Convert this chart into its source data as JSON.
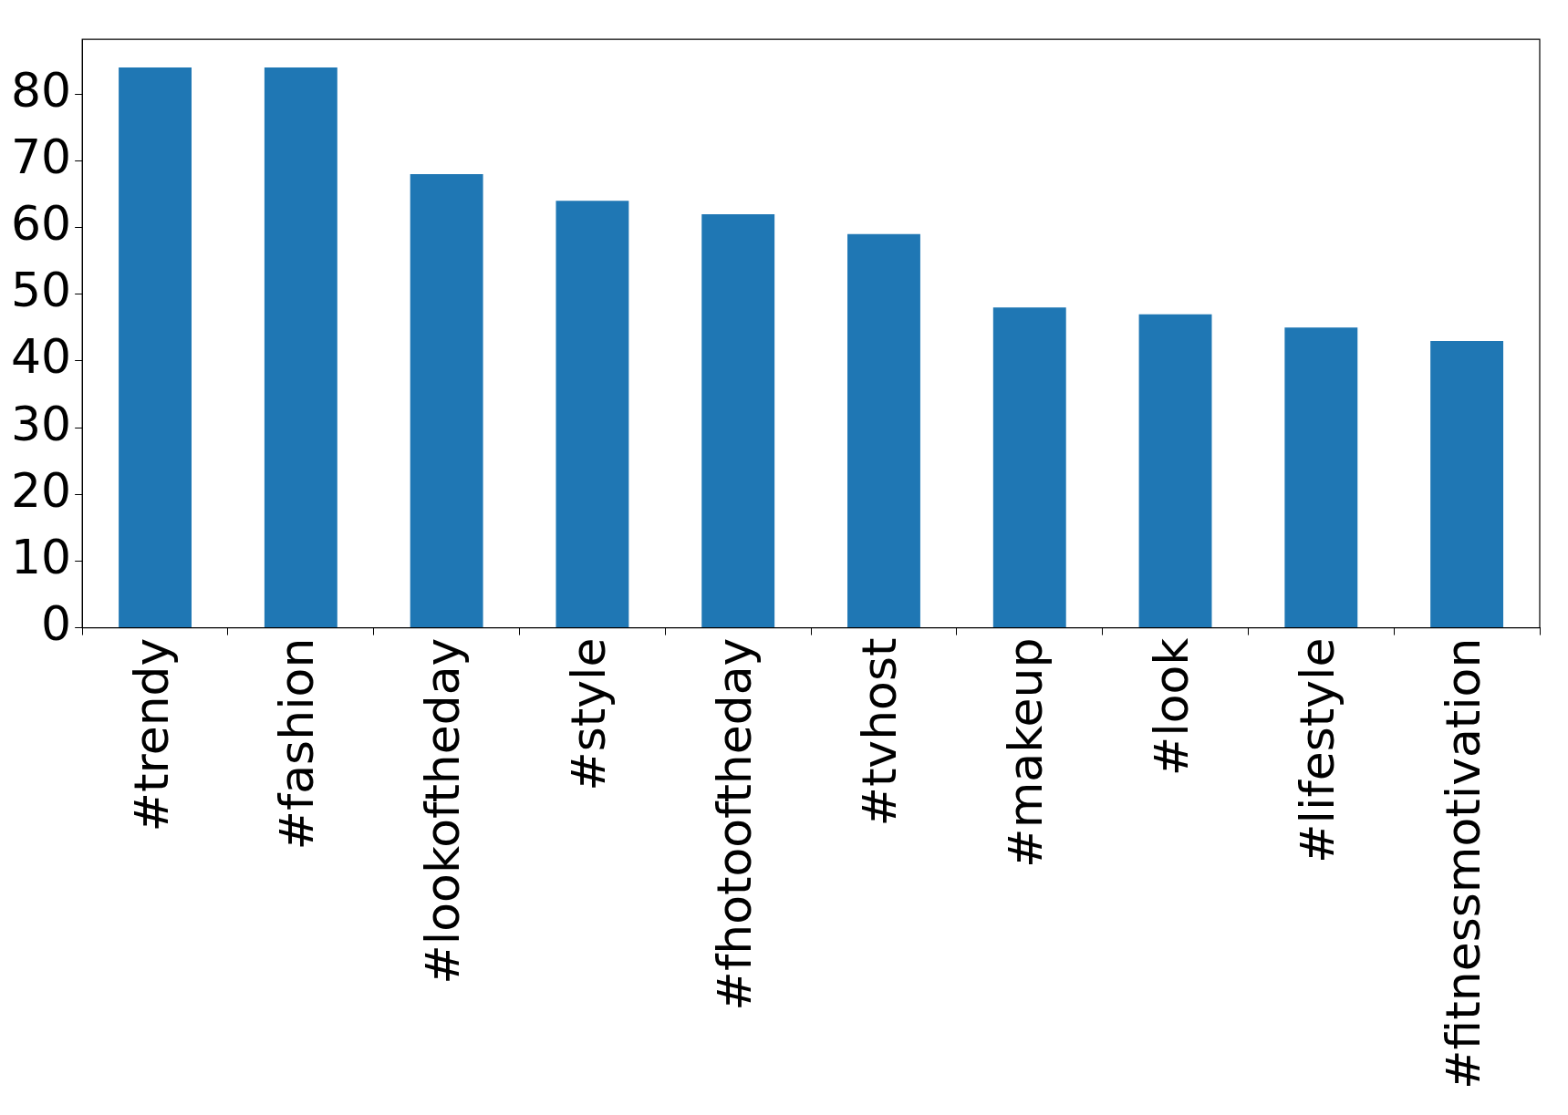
{
  "chart_data": {
    "type": "bar",
    "categories": [
      "#trendy",
      "#fashion",
      "#lookoftheday",
      "#style",
      "#fhotooftheday",
      "#tvhost",
      "#makeup",
      "#look",
      "#lifestyle",
      "#fitnessmotivation"
    ],
    "values": [
      84,
      84,
      68,
      64,
      62,
      59,
      48,
      47,
      45,
      43
    ],
    "color": "#1f77b4",
    "ylim": [
      0,
      88.2
    ],
    "yticks": [
      0,
      10,
      20,
      30,
      40,
      50,
      60,
      70,
      80
    ],
    "grid": false,
    "legend": false
  }
}
